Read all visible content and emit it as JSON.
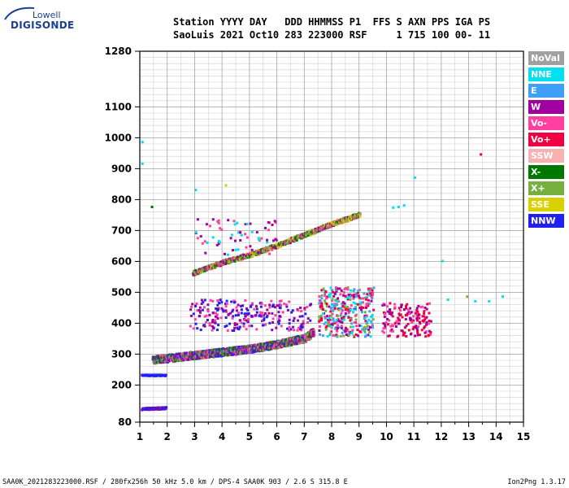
{
  "logo": {
    "line1": "Lowell",
    "line2": "DIGISONDE"
  },
  "header": {
    "line1": "Station YYYY DAY   DDD HHMMSS P1  FFS S AXN PPS IGA PS",
    "line2": "SaoLuis 2021 Oct10 283 223000 RSF     1 715 100 00- 11"
  },
  "footer": {
    "left": "SAA0K_2021283223000.RSF / 280fx256h 50 kHz 5.0 km / DPS-4 SAA0K 903 / 2.6 S 315.8 E",
    "right": "Ion2Png 1.3.17"
  },
  "colors": {
    "NoVal": "#a0a0a0",
    "NNE": "#00e0f0",
    "E": "#40a0f8",
    "W": "#a000a0",
    "Vo-": "#ff40a0",
    "Vo+": "#f00040",
    "SSW": "#f8b0b0",
    "X-": "#007800",
    "X+": "#78b040",
    "SSE": "#d8d000",
    "NNW": "#2020f0"
  },
  "legend": [
    "NoVal",
    "NNE",
    "E",
    "W",
    "Vo-",
    "Vo+",
    "SSW",
    "X-",
    "X+",
    "SSE",
    "NNW"
  ],
  "chart_data": {
    "type": "scatter",
    "title": "",
    "xlabel": "",
    "ylabel": "",
    "xlim": [
      1,
      15
    ],
    "ylim": [
      80,
      1280
    ],
    "x_ticks": [
      1,
      2,
      3,
      4,
      5,
      6,
      7,
      8,
      9,
      10,
      11,
      12,
      13,
      14,
      15
    ],
    "y_ticks": [
      80,
      200,
      300,
      400,
      500,
      600,
      700,
      800,
      900,
      1000,
      1100,
      1280
    ],
    "grid": true,
    "legend_position": "right",
    "traces": [
      {
        "name": "O-trace lower layer",
        "colors": [
          "Vo-",
          "X-",
          "W",
          "NNW",
          "X+"
        ],
        "x": [
          1.45,
          2.0,
          3.0,
          4.0,
          5.0,
          6.0,
          7.0,
          7.3
        ],
        "y": [
          285,
          290,
          300,
          310,
          320,
          335,
          355,
          375
        ],
        "spread": 12,
        "density": 9
      },
      {
        "name": "upper echo trace",
        "colors": [
          "SSE",
          "X-",
          "X+",
          "W",
          "Vo-"
        ],
        "x": [
          2.9,
          4.0,
          5.0,
          6.0,
          7.0,
          8.0,
          9.0
        ],
        "y": [
          565,
          600,
          625,
          655,
          690,
          725,
          755
        ],
        "spread": 7,
        "density": 5
      },
      {
        "name": "low altitude echoes",
        "colors": [
          "NNW",
          "W"
        ],
        "x": [
          1.0,
          1.9
        ],
        "y": [
          126,
          129
        ],
        "spread": 3,
        "density": 5
      },
      {
        "name": "235 km echoes",
        "colors": [
          "NNW"
        ],
        "x": [
          1.0,
          1.9
        ],
        "y": [
          235,
          235
        ],
        "spread": 2,
        "density": 3
      }
    ],
    "clusters": [
      {
        "name": "W spread cloud",
        "colors": [
          "W",
          "Vo-",
          "NNW"
        ],
        "x": [
          2.8,
          7.2
        ],
        "y": [
          380,
          480
        ],
        "count": 260
      },
      {
        "name": "high-frequency spread",
        "colors": [
          "Vo-",
          "Vo+",
          "X+",
          "NNE",
          "E",
          "W"
        ],
        "x": [
          7.5,
          9.5
        ],
        "y": [
          360,
          520
        ],
        "count": 340
      },
      {
        "name": "Vo+ patch",
        "colors": [
          "Vo+",
          "Vo-",
          "W"
        ],
        "x": [
          9.8,
          11.6
        ],
        "y": [
          360,
          470
        ],
        "count": 160
      },
      {
        "name": "sparse high scatter",
        "colors": [
          "W",
          "Vo-",
          "NNE"
        ],
        "x": [
          3.0,
          6.0
        ],
        "y": [
          620,
          740
        ],
        "count": 70
      }
    ],
    "isolated": [
      {
        "x": 13.4,
        "y": 950,
        "color": "Vo+"
      },
      {
        "x": 11.0,
        "y": 875,
        "color": "NNE"
      },
      {
        "x": 10.2,
        "y": 778,
        "color": "NNE"
      },
      {
        "x": 10.4,
        "y": 780,
        "color": "NNE"
      },
      {
        "x": 10.6,
        "y": 785,
        "color": "NNE"
      },
      {
        "x": 12.0,
        "y": 605,
        "color": "NNE"
      },
      {
        "x": 12.2,
        "y": 480,
        "color": "NNE"
      },
      {
        "x": 13.2,
        "y": 475,
        "color": "NNE"
      },
      {
        "x": 13.7,
        "y": 475,
        "color": "NNE"
      },
      {
        "x": 14.2,
        "y": 490,
        "color": "NNE"
      },
      {
        "x": 12.9,
        "y": 490,
        "color": "X+"
      },
      {
        "x": 1.05,
        "y": 990,
        "color": "NNE"
      },
      {
        "x": 1.05,
        "y": 920,
        "color": "NNE"
      },
      {
        "x": 3.0,
        "y": 835,
        "color": "NNE"
      },
      {
        "x": 1.4,
        "y": 780,
        "color": "X-"
      },
      {
        "x": 4.1,
        "y": 850,
        "color": "SSE"
      },
      {
        "x": 12.0,
        "y": 80,
        "color": "NNE"
      }
    ]
  }
}
